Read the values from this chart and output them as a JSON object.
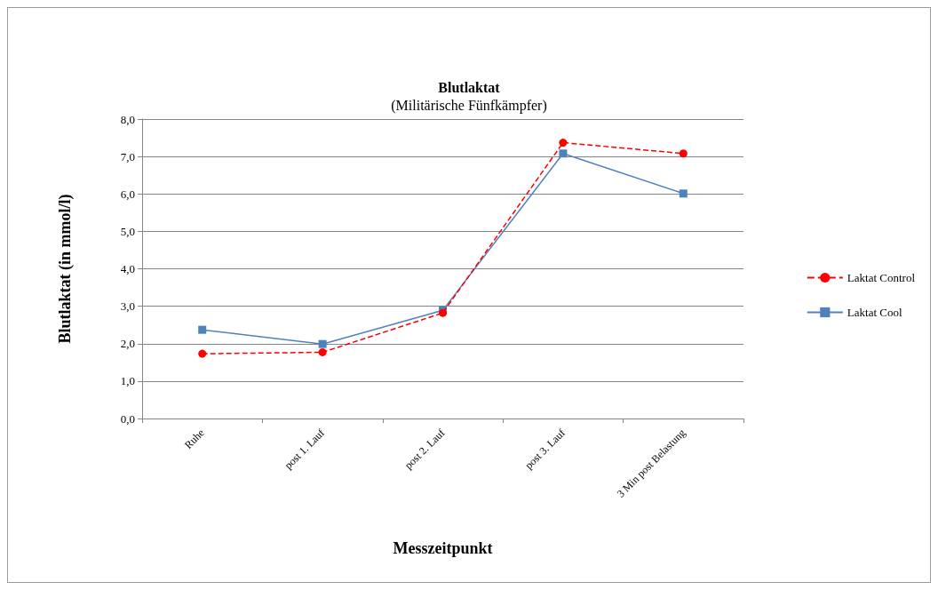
{
  "chart_data": {
    "type": "line",
    "title": "Blutlaktat",
    "subtitle": "(Militärische Fünfkämpfer)",
    "xlabel": "Messzeitpunkt",
    "ylabel": "Blutlaktat (in mmol/l)",
    "categories": [
      "Ruhe",
      "post 1. Lauf",
      "post 2. Lauf",
      "post 3. Lauf",
      "3 Min post Belastung"
    ],
    "series": [
      {
        "name": "Laktat Control",
        "color": "#ff0000",
        "marker": "circle",
        "line_style": "dashed",
        "values": [
          1.73,
          1.77,
          2.82,
          7.37,
          7.08
        ]
      },
      {
        "name": "Laktat Cool",
        "color": "#4f81bd",
        "marker": "square",
        "line_style": "solid",
        "values": [
          2.37,
          1.99,
          2.89,
          7.08,
          6.01
        ]
      }
    ],
    "ylim": [
      0,
      8
    ],
    "yticks": [
      {
        "value": 0,
        "label": "0,0"
      },
      {
        "value": 1,
        "label": "1,0"
      },
      {
        "value": 2,
        "label": "2,0"
      },
      {
        "value": 3,
        "label": "3,0"
      },
      {
        "value": 4,
        "label": "4,0"
      },
      {
        "value": 5,
        "label": "5,0"
      },
      {
        "value": 6,
        "label": "6,0"
      },
      {
        "value": 7,
        "label": "7,0"
      },
      {
        "value": 8,
        "label": "8,0"
      }
    ],
    "grid": "y",
    "legend": "right"
  }
}
